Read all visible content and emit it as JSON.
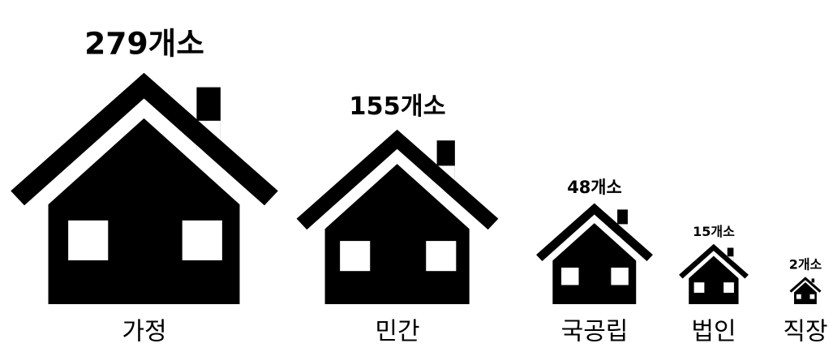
{
  "chart_data": {
    "type": "pictogram",
    "categories": [
      "가정",
      "민간",
      "국공립",
      "법인",
      "직장"
    ],
    "values": [
      279,
      155,
      48,
      15,
      2
    ],
    "value_labels": [
      "279개소",
      "155개소",
      "48개소",
      "15개소",
      "2개소"
    ],
    "color": "#000000"
  }
}
